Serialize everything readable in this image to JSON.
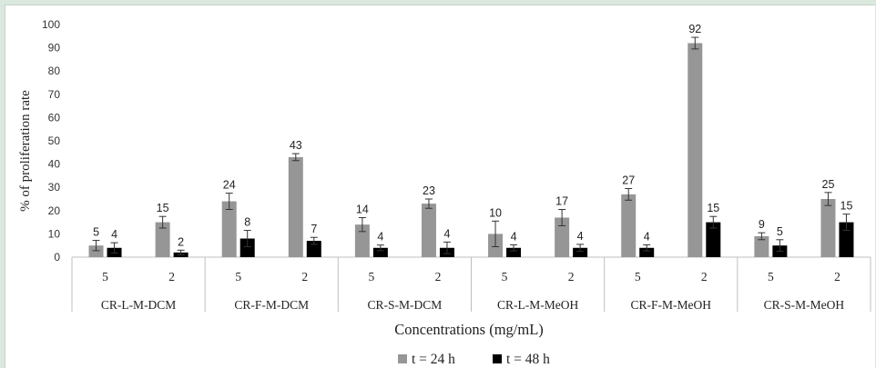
{
  "chart_data": {
    "type": "bar",
    "title": "",
    "xlabel": "Concentrations (mg/mL)",
    "ylabel": "% of proliferation rate",
    "ylim": [
      0,
      100
    ],
    "yticks": [
      0,
      10,
      20,
      30,
      40,
      50,
      60,
      70,
      80,
      90,
      100
    ],
    "groups": [
      "CR-L-M-DCM",
      "CR-F-M-DCM",
      "CR-S-M-DCM",
      "CR-L-M-MeOH",
      "CR-F-M-MeOH",
      "CR-S-M-MeOH"
    ],
    "concentrations": [
      "5",
      "2"
    ],
    "series": [
      {
        "name": "t = 24 h",
        "color": "#969696",
        "values": [
          5,
          15,
          24,
          43,
          14,
          23,
          10,
          17,
          27,
          92,
          9,
          25
        ],
        "labels": [
          "5",
          "15",
          "24",
          "43",
          "14",
          "23",
          "10",
          "17",
          "27",
          "92",
          "9",
          "25"
        ],
        "errors": [
          2.2,
          2.5,
          3.5,
          1.5,
          3.0,
          2.0,
          5.5,
          3.5,
          2.5,
          2.5,
          1.5,
          2.8
        ]
      },
      {
        "name": "t = 48 h",
        "color": "#000000",
        "values": [
          4,
          2,
          8,
          7,
          4,
          4,
          4,
          4,
          4,
          15,
          5,
          15
        ],
        "labels": [
          "4",
          "2",
          "8",
          "7",
          "4",
          "4",
          "4",
          "4",
          "4",
          "15",
          "5",
          "15"
        ],
        "errors": [
          2.2,
          1.0,
          3.5,
          1.5,
          1.2,
          2.5,
          1.3,
          1.5,
          1.3,
          2.5,
          2.5,
          3.5
        ]
      }
    ],
    "grid": false,
    "legend": "bottom"
  }
}
